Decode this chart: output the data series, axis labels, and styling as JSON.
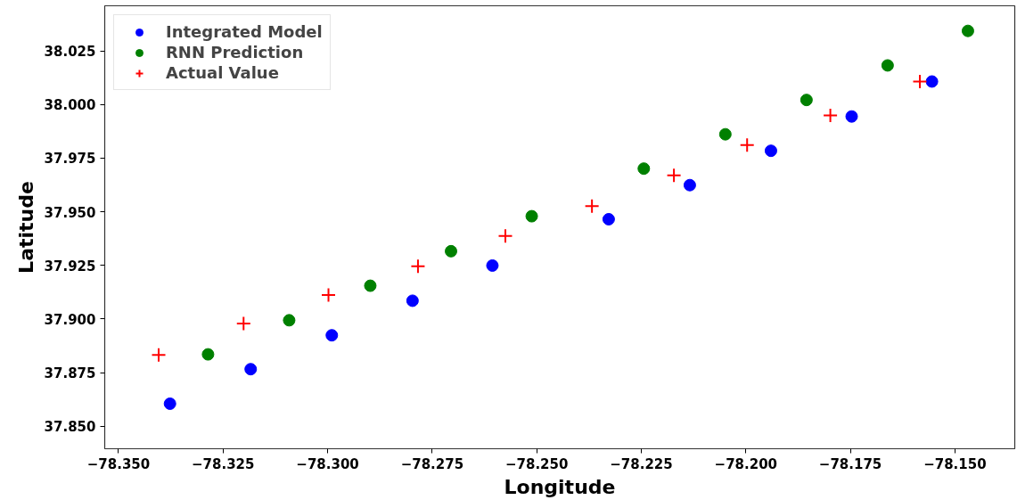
{
  "chart_data": {
    "type": "scatter",
    "xlabel": "Longitude",
    "ylabel": "Latitude",
    "xlim": [
      -78.3533,
      -78.1357
    ],
    "ylim": [
      37.8395,
      38.046
    ],
    "xticks": [
      {
        "value": -78.35,
        "label": "−78.350"
      },
      {
        "value": -78.325,
        "label": "−78.325"
      },
      {
        "value": -78.3,
        "label": "−78.300"
      },
      {
        "value": -78.275,
        "label": "−78.275"
      },
      {
        "value": -78.25,
        "label": "−78.250"
      },
      {
        "value": -78.225,
        "label": "−78.225"
      },
      {
        "value": -78.2,
        "label": "−78.200"
      },
      {
        "value": -78.175,
        "label": "−78.175"
      },
      {
        "value": -78.15,
        "label": "−78.150"
      }
    ],
    "yticks": [
      {
        "value": 37.85,
        "label": "37.850"
      },
      {
        "value": 37.875,
        "label": "37.875"
      },
      {
        "value": 37.9,
        "label": "37.900"
      },
      {
        "value": 37.925,
        "label": "37.925"
      },
      {
        "value": 37.95,
        "label": "37.950"
      },
      {
        "value": 37.975,
        "label": "37.975"
      },
      {
        "value": 38.0,
        "label": "38.000"
      },
      {
        "value": 38.025,
        "label": "38.025"
      }
    ],
    "grid": false,
    "legend": "top left",
    "series": [
      {
        "name": "Integrated Model",
        "color": "#0000ff",
        "marker": "circle",
        "x": [
          -78.3377,
          -78.3184,
          -78.299,
          -78.2797,
          -78.2606,
          -78.2328,
          -78.2134,
          -78.194,
          -78.1747,
          -78.1555
        ],
        "values": [
          37.8605,
          37.8766,
          37.8924,
          37.9085,
          37.9249,
          37.9465,
          37.9624,
          37.9784,
          37.9944,
          38.0107
        ]
      },
      {
        "name": "RNN Prediction",
        "color": "#008000",
        "marker": "circle",
        "x": [
          -78.3286,
          -78.3092,
          -78.2898,
          -78.2705,
          -78.2512,
          -78.2244,
          -78.2049,
          -78.1855,
          -78.1661,
          -78.1469
        ],
        "values": [
          37.8835,
          37.8994,
          37.9155,
          37.9316,
          37.9479,
          37.9701,
          37.9861,
          38.0021,
          38.0182,
          38.0343
        ]
      },
      {
        "name": "Actual Value",
        "color": "#ff0000",
        "marker": "cross",
        "x": [
          -78.3404,
          -78.3201,
          -78.2998,
          -78.2784,
          -78.2575,
          -78.2368,
          -78.2172,
          -78.1997,
          -78.1798,
          -78.1584
        ],
        "values": [
          37.8832,
          37.8979,
          37.9112,
          37.9246,
          37.9387,
          37.9526,
          37.967,
          37.9811,
          37.9949,
          38.0107
        ]
      }
    ]
  }
}
